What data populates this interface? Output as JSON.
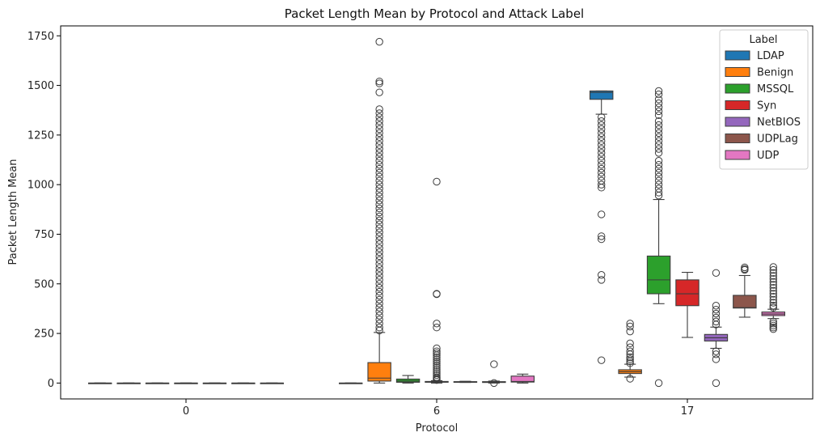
{
  "chart_data": {
    "type": "box",
    "title": "Packet Length Mean by Protocol and Attack Label",
    "xlabel": "Protocol",
    "ylabel": "Packet Length Mean",
    "categories": [
      "0",
      "6",
      "17"
    ],
    "ylim": [
      -80,
      1800
    ],
    "yticks": [
      0,
      250,
      500,
      750,
      1000,
      1250,
      1500,
      1750
    ],
    "grid": false,
    "legend": {
      "title": "Label",
      "placement": "top-right"
    },
    "series": [
      {
        "name": "LDAP",
        "color": "#1f77b4",
        "boxes": [
          {
            "category": "0",
            "q1": 0,
            "median": 0,
            "q3": 0,
            "whisker_low": 0,
            "whisker_high": 0,
            "outliers": []
          },
          {
            "category": "6",
            "q1": 0,
            "median": 0,
            "q3": 0,
            "whisker_low": 0,
            "whisker_high": 0,
            "outliers": []
          },
          {
            "category": "17",
            "q1": 1430,
            "median": 1465,
            "q3": 1472,
            "whisker_low": 1355,
            "whisker_high": 1472,
            "outliers": [
              1340,
              1320,
              1300,
              1280,
              1260,
              1240,
              1220,
              1200,
              1180,
              1160,
              1140,
              1120,
              1100,
              1080,
              1060,
              1040,
              1020,
              1000,
              985,
              850,
              740,
              725,
              545,
              520,
              115
            ]
          }
        ]
      },
      {
        "name": "Benign",
        "color": "#ff7f0e",
        "boxes": [
          {
            "category": "0",
            "q1": 0,
            "median": 0,
            "q3": 0,
            "whisker_low": 0,
            "whisker_high": 0,
            "outliers": []
          },
          {
            "category": "6",
            "q1": 10,
            "median": 25,
            "q3": 103,
            "whisker_low": 0,
            "whisker_high": 255,
            "outliers": [
              1720,
              1520,
              1510,
              1465,
              1380,
              1360,
              1340,
              1320,
              1300,
              1280,
              1260,
              1240,
              1220,
              1200,
              1180,
              1160,
              1140,
              1120,
              1100,
              1080,
              1060,
              1040,
              1020,
              1000,
              980,
              960,
              940,
              920,
              900,
              880,
              860,
              840,
              820,
              800,
              780,
              760,
              740,
              720,
              700,
              680,
              660,
              640,
              620,
              600,
              580,
              560,
              540,
              520,
              500,
              480,
              460,
              440,
              420,
              400,
              380,
              360,
              340,
              320,
              300,
              280,
              265
            ]
          },
          {
            "category": "17",
            "q1": 48,
            "median": 57,
            "q3": 67,
            "whisker_low": 30,
            "whisker_high": 95,
            "outliers": [
              300,
              285,
              260,
              200,
              180,
              160,
              145,
              130,
              120,
              110,
              100,
              22
            ]
          }
        ]
      },
      {
        "name": "MSSQL",
        "color": "#2ca02c",
        "boxes": [
          {
            "category": "0",
            "q1": 0,
            "median": 0,
            "q3": 0,
            "whisker_low": 0,
            "whisker_high": 0,
            "outliers": []
          },
          {
            "category": "6",
            "q1": 4,
            "median": 10,
            "q3": 20,
            "whisker_low": 0,
            "whisker_high": 38,
            "outliers": []
          },
          {
            "category": "17",
            "q1": 450,
            "median": 520,
            "q3": 640,
            "whisker_low": 400,
            "whisker_high": 925,
            "outliers": [
              1472,
              1455,
              1430,
              1410,
              1390,
              1370,
              1350,
              1320,
              1300,
              1280,
              1260,
              1240,
              1220,
              1200,
              1180,
              1160,
              1120,
              1100,
              1080,
              1060,
              1040,
              1020,
              1000,
              980,
              960,
              945,
              0
            ]
          }
        ]
      },
      {
        "name": "Syn",
        "color": "#d62728",
        "boxes": [
          {
            "category": "0",
            "q1": 0,
            "median": 0,
            "q3": 0,
            "whisker_low": 0,
            "whisker_high": 0,
            "outliers": []
          },
          {
            "category": "6",
            "q1": 4,
            "median": 6,
            "q3": 8,
            "whisker_low": 0,
            "whisker_high": 12,
            "outliers": [
              1015,
              450,
              448,
              300,
              280,
              175,
              160,
              150,
              140,
              130,
              120,
              110,
              100,
              90,
              80,
              70,
              60,
              50,
              40,
              30,
              25,
              20,
              15
            ]
          },
          {
            "category": "17",
            "q1": 390,
            "median": 450,
            "q3": 520,
            "whisker_low": 230,
            "whisker_high": 558,
            "outliers": []
          }
        ]
      },
      {
        "name": "NetBIOS",
        "color": "#9467bd",
        "boxes": [
          {
            "category": "0",
            "q1": 0,
            "median": 0,
            "q3": 0,
            "whisker_low": 0,
            "whisker_high": 0,
            "outliers": []
          },
          {
            "category": "6",
            "q1": 5,
            "median": 6,
            "q3": 7,
            "whisker_low": 3,
            "whisker_high": 9,
            "outliers": []
          },
          {
            "category": "17",
            "q1": 212,
            "median": 228,
            "q3": 245,
            "whisker_low": 175,
            "whisker_high": 282,
            "outliers": [
              555,
              390,
              370,
              350,
              330,
              310,
              295,
              160,
              145,
              120,
              0
            ]
          }
        ]
      },
      {
        "name": "UDPLag",
        "color": "#8c564b",
        "boxes": [
          {
            "category": "0",
            "q1": 0,
            "median": 0,
            "q3": 0,
            "whisker_low": 0,
            "whisker_high": 0,
            "outliers": []
          },
          {
            "category": "6",
            "q1": 3,
            "median": 5,
            "q3": 7,
            "whisker_low": 0,
            "whisker_high": 10,
            "outliers": [
              95,
              0
            ]
          },
          {
            "category": "17",
            "q1": 378,
            "median": 380,
            "q3": 442,
            "whisker_low": 332,
            "whisker_high": 542,
            "outliers": [
              583,
              575,
              570
            ]
          }
        ]
      },
      {
        "name": "UDP",
        "color": "#e377c2",
        "boxes": [
          {
            "category": "0",
            "q1": 0,
            "median": 0,
            "q3": 0,
            "whisker_low": 0,
            "whisker_high": 0,
            "outliers": []
          },
          {
            "category": "6",
            "q1": 5,
            "median": 8,
            "q3": 35,
            "whisker_low": 0,
            "whisker_high": 45,
            "outliers": []
          },
          {
            "category": "17",
            "q1": 340,
            "median": 348,
            "q3": 358,
            "whisker_low": 325,
            "whisker_high": 372,
            "outliers": [
              585,
              570,
              555,
              540,
              525,
              510,
              495,
              480,
              465,
              450,
              435,
              420,
              405,
              390,
              380,
              310,
              300,
              290,
              280,
              272
            ]
          }
        ]
      }
    ]
  }
}
